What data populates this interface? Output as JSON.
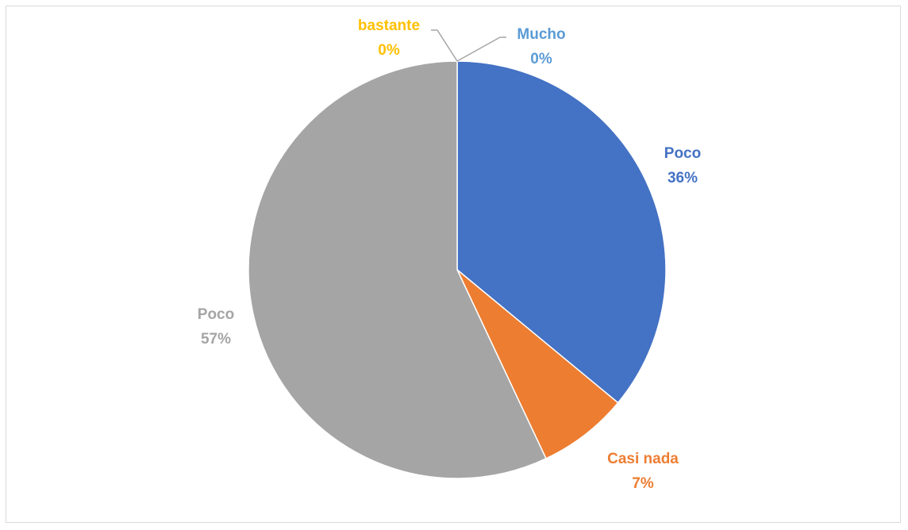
{
  "chart_data": {
    "type": "pie",
    "title": "",
    "legend": false,
    "slices": [
      {
        "name": "Mucho",
        "percent_label": "0%",
        "value": 0,
        "color": "#5B9BD5"
      },
      {
        "name": "Poco",
        "percent_label": "36%",
        "value": 36,
        "color": "#4472C4"
      },
      {
        "name": "Casi nada",
        "percent_label": "7%",
        "value": 7,
        "color": "#ED7D31"
      },
      {
        "name": "Poco",
        "percent_label": "57%",
        "value": 57,
        "color": "#A5A5A5"
      },
      {
        "name": "bastante",
        "percent_label": "0%",
        "value": 0,
        "color": "#FFC000"
      }
    ],
    "start_angle_deg": 0,
    "direction": "clockwise"
  }
}
